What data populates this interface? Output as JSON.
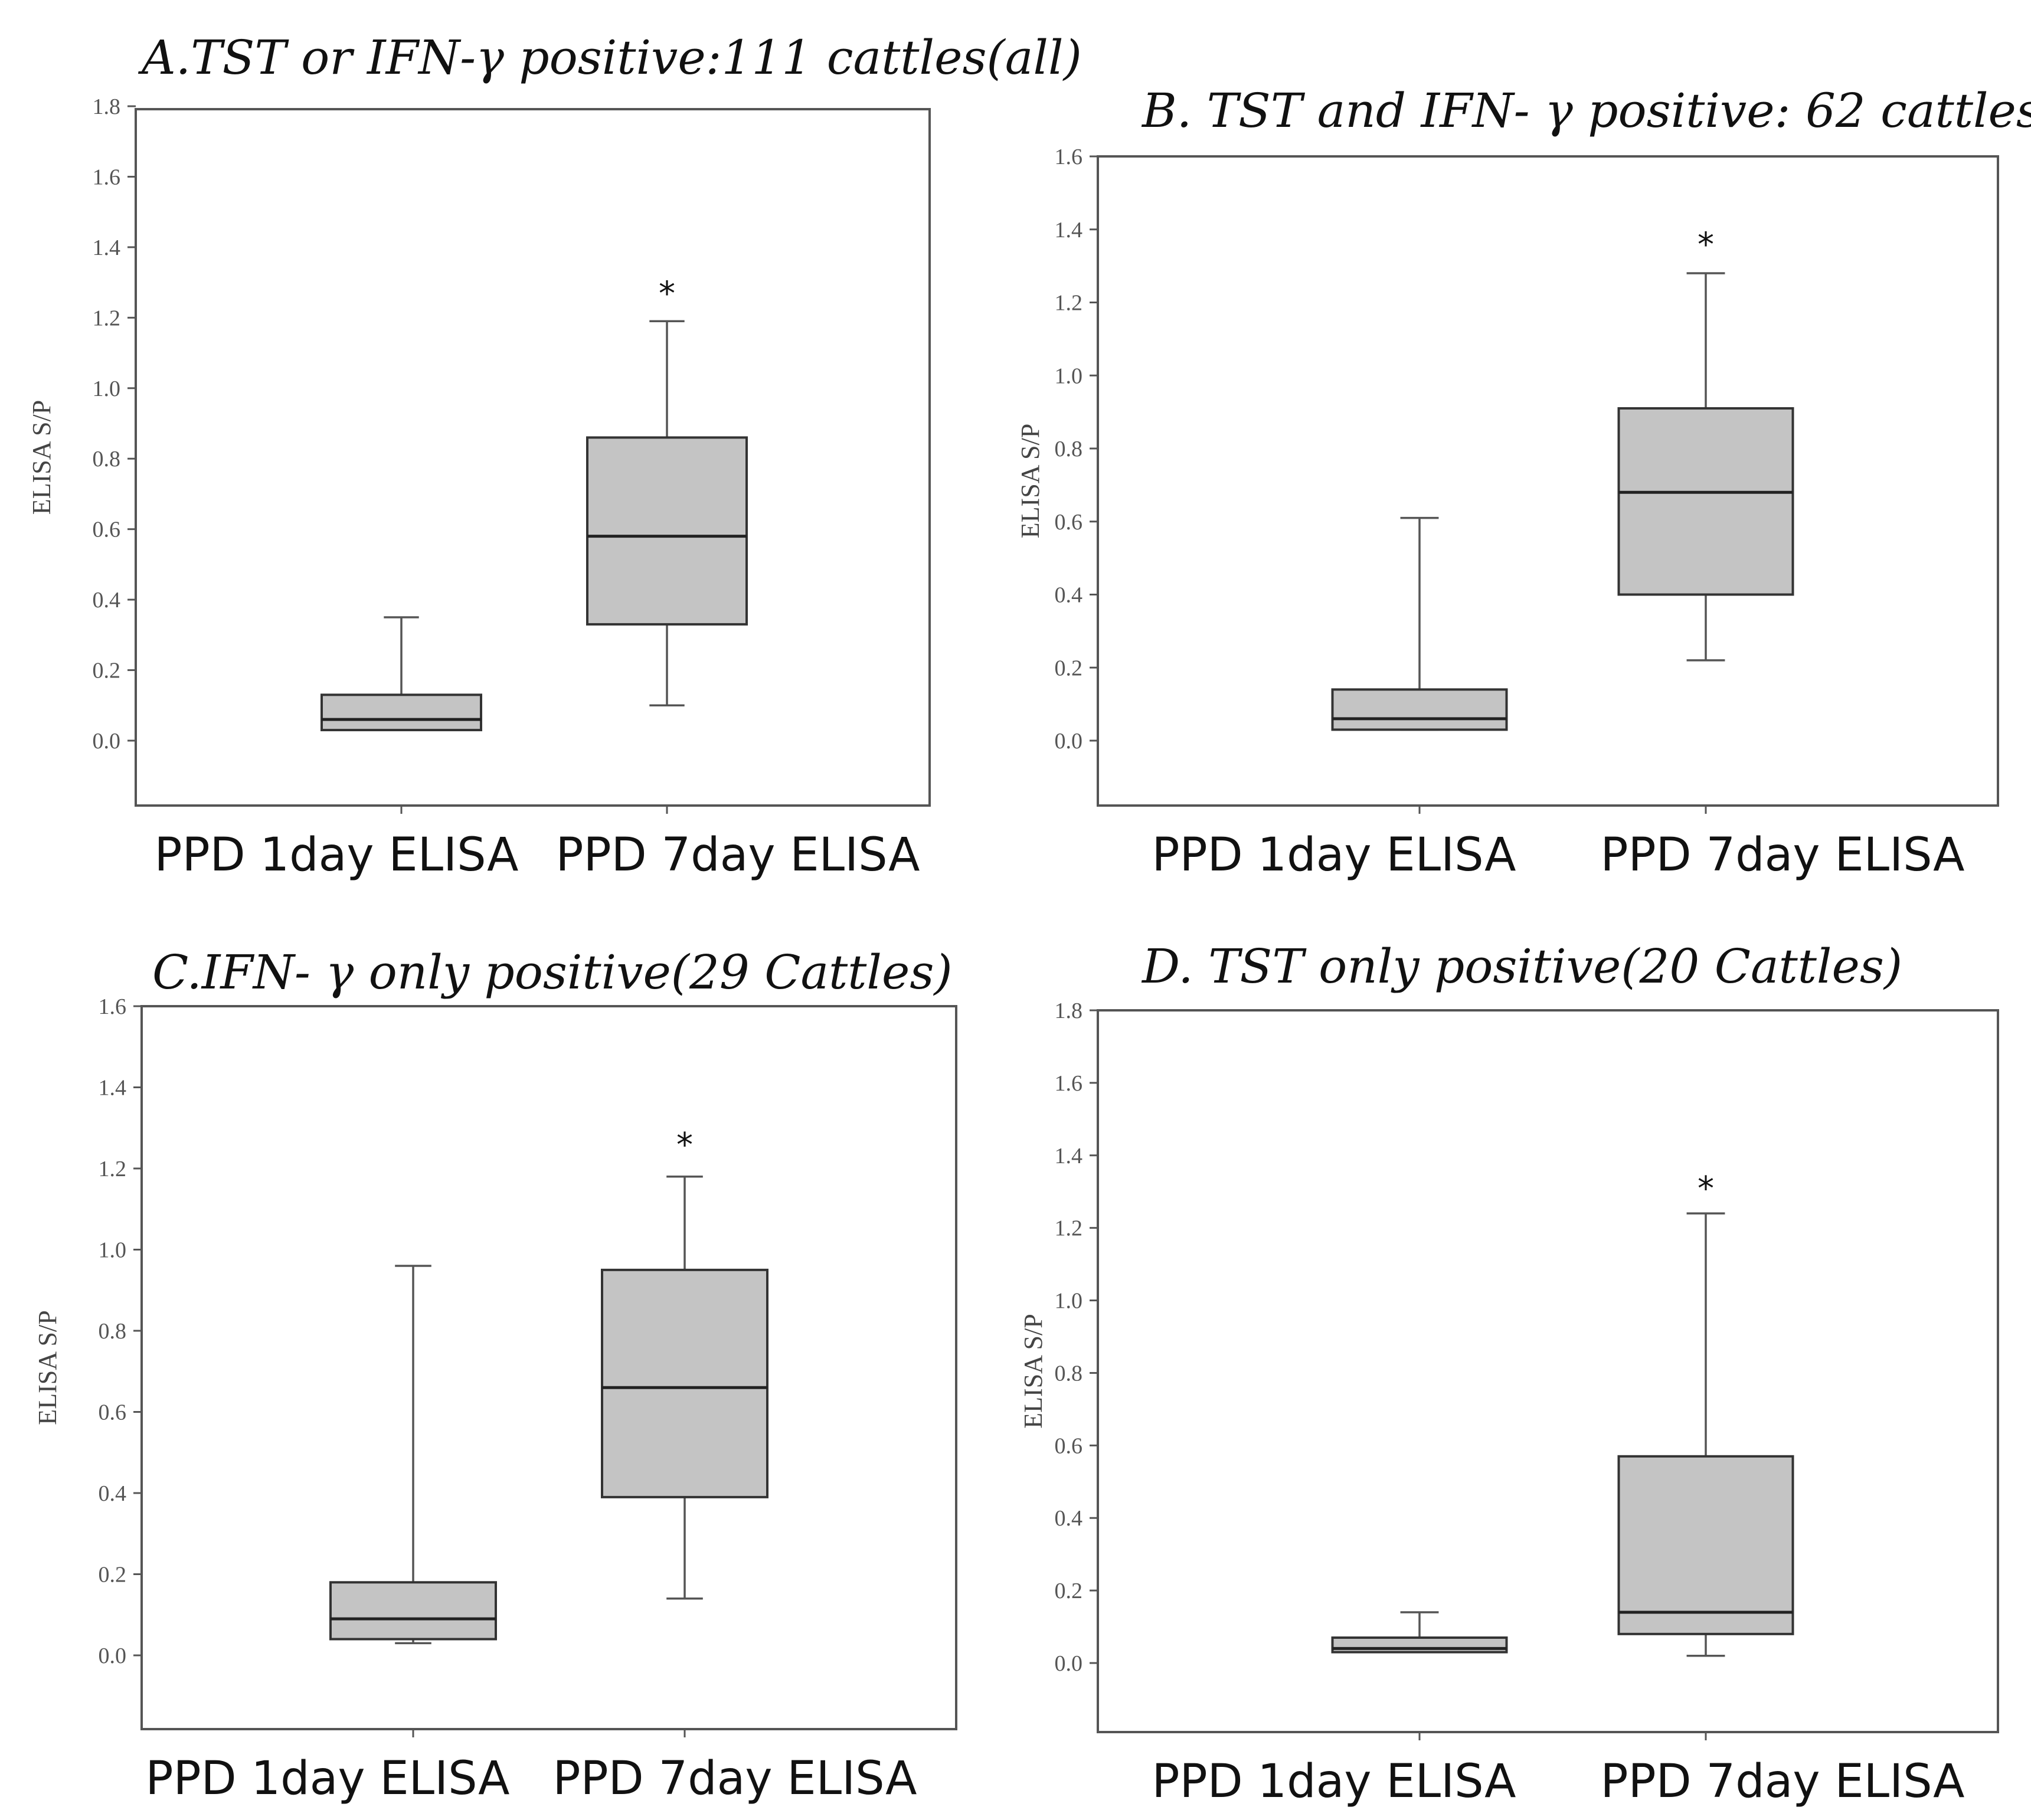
{
  "chart_data": [
    {
      "type": "box",
      "panel": "A",
      "title": "A.TST or IFN-γ positive:111 cattles(all)",
      "ylabel": "ELISA S/P",
      "ylim": [
        -0.18,
        1.8
      ],
      "yticks": [
        "0.0",
        "0.2",
        "0.4",
        "0.6",
        "0.8",
        "1.0",
        "1.2",
        "1.4",
        "1.6",
        "1.8"
      ],
      "categories": [
        "PPD 1day ELISA",
        "PPD 7day ELISA"
      ],
      "boxes": [
        {
          "min": 0.03,
          "q1": 0.03,
          "median": 0.06,
          "q3": 0.13,
          "max": 0.35
        },
        {
          "min": 0.1,
          "q1": 0.33,
          "median": 0.58,
          "q3": 0.86,
          "max": 1.19
        }
      ],
      "annotations": [
        {
          "category": 1,
          "value": 1.27,
          "text": "*"
        }
      ]
    },
    {
      "type": "box",
      "panel": "B",
      "title": "B. TST and IFN- γ positive: 62 cattles",
      "ylabel": "ELISA S/P",
      "ylim": [
        -0.17,
        1.6
      ],
      "yticks": [
        "0.0",
        "0.2",
        "0.4",
        "0.6",
        "0.8",
        "1.0",
        "1.2",
        "1.4",
        "1.6"
      ],
      "categories": [
        "PPD 1day ELISA",
        "PPD 7day ELISA"
      ],
      "boxes": [
        {
          "min": 0.03,
          "q1": 0.03,
          "median": 0.06,
          "q3": 0.14,
          "max": 0.61
        },
        {
          "min": 0.22,
          "q1": 0.4,
          "median": 0.68,
          "q3": 0.91,
          "max": 1.28
        }
      ],
      "annotations": [
        {
          "category": 1,
          "value": 1.36,
          "text": "*"
        }
      ]
    },
    {
      "type": "box",
      "panel": "C",
      "title": "C.IFN- γ  only positive(29 Cattles)",
      "ylabel": "ELISA S/P",
      "ylim": [
        -0.18,
        1.6
      ],
      "yticks": [
        "0.0",
        "0.2",
        "0.4",
        "0.6",
        "0.8",
        "1.0",
        "1.2",
        "1.4",
        "1.6"
      ],
      "categories": [
        "PPD 1day ELISA",
        "PPD 7day ELISA"
      ],
      "boxes": [
        {
          "min": 0.03,
          "q1": 0.04,
          "median": 0.09,
          "q3": 0.18,
          "max": 0.96
        },
        {
          "min": 0.14,
          "q1": 0.39,
          "median": 0.66,
          "q3": 0.95,
          "max": 1.18
        }
      ],
      "annotations": [
        {
          "category": 1,
          "value": 1.26,
          "text": "*"
        }
      ]
    },
    {
      "type": "box",
      "panel": "D",
      "title": "D. TST only positive(20 Cattles)",
      "ylabel": "ELISA S/P",
      "ylim": [
        -0.19,
        1.8
      ],
      "yticks": [
        "0.0",
        "0.2",
        "0.4",
        "0.6",
        "0.8",
        "1.0",
        "1.2",
        "1.4",
        "1.6",
        "1.8"
      ],
      "categories": [
        "PPD 1day ELISA",
        "PPD 7day ELISA"
      ],
      "boxes": [
        {
          "min": 0.03,
          "q1": 0.03,
          "median": 0.04,
          "q3": 0.07,
          "max": 0.14
        },
        {
          "min": 0.02,
          "q1": 0.08,
          "median": 0.14,
          "q3": 0.57,
          "max": 1.24
        }
      ],
      "annotations": [
        {
          "category": 1,
          "value": 1.31,
          "text": "*"
        }
      ]
    }
  ]
}
